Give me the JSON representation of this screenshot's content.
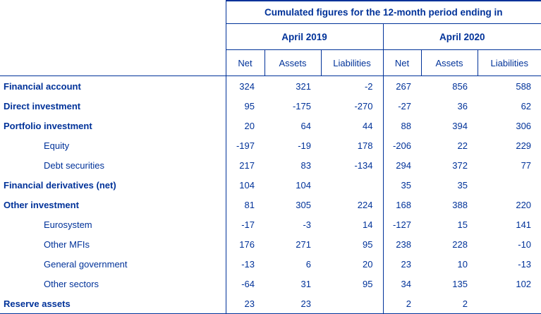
{
  "colors": {
    "text": "#003299",
    "border": "#003299",
    "background": "#ffffff"
  },
  "chart_data": {
    "type": "table",
    "title": "Cumulated figures for the 12-month period ending in",
    "column_groups": [
      "April 2019",
      "April 2020"
    ],
    "columns": [
      "Net",
      "Assets",
      "Liabilities",
      "Net",
      "Assets",
      "Liabilities"
    ],
    "rows": [
      {
        "label": "Financial account",
        "bold": true,
        "indent": false,
        "values": [
          "324",
          "321",
          "-2",
          "267",
          "856",
          "588"
        ]
      },
      {
        "label": "Direct investment",
        "bold": true,
        "indent": false,
        "values": [
          "95",
          "-175",
          "-270",
          "-27",
          "36",
          "62"
        ]
      },
      {
        "label": "Portfolio investment",
        "bold": true,
        "indent": false,
        "values": [
          "20",
          "64",
          "44",
          "88",
          "394",
          "306"
        ]
      },
      {
        "label": "Equity",
        "bold": false,
        "indent": true,
        "values": [
          "-197",
          "-19",
          "178",
          "-206",
          "22",
          "229"
        ]
      },
      {
        "label": "Debt securities",
        "bold": false,
        "indent": true,
        "values": [
          "217",
          "83",
          "-134",
          "294",
          "372",
          "77"
        ]
      },
      {
        "label": "Financial derivatives (net)",
        "bold": true,
        "indent": false,
        "values": [
          "104",
          "104",
          "",
          "35",
          "35",
          ""
        ]
      },
      {
        "label": "Other investment",
        "bold": true,
        "indent": false,
        "values": [
          "81",
          "305",
          "224",
          "168",
          "388",
          "220"
        ]
      },
      {
        "label": "Eurosystem",
        "bold": false,
        "indent": true,
        "values": [
          "-17",
          "-3",
          "14",
          "-127",
          "15",
          "141"
        ]
      },
      {
        "label": "Other MFIs",
        "bold": false,
        "indent": true,
        "values": [
          "176",
          "271",
          "95",
          "238",
          "228",
          "-10"
        ]
      },
      {
        "label": "General government",
        "bold": false,
        "indent": true,
        "values": [
          "-13",
          "6",
          "20",
          "23",
          "10",
          "-13"
        ]
      },
      {
        "label": "Other sectors",
        "bold": false,
        "indent": true,
        "values": [
          "-64",
          "31",
          "95",
          "34",
          "135",
          "102"
        ]
      },
      {
        "label": "Reserve assets",
        "bold": true,
        "indent": false,
        "values": [
          "23",
          "23",
          "",
          "2",
          "2",
          ""
        ]
      }
    ]
  }
}
